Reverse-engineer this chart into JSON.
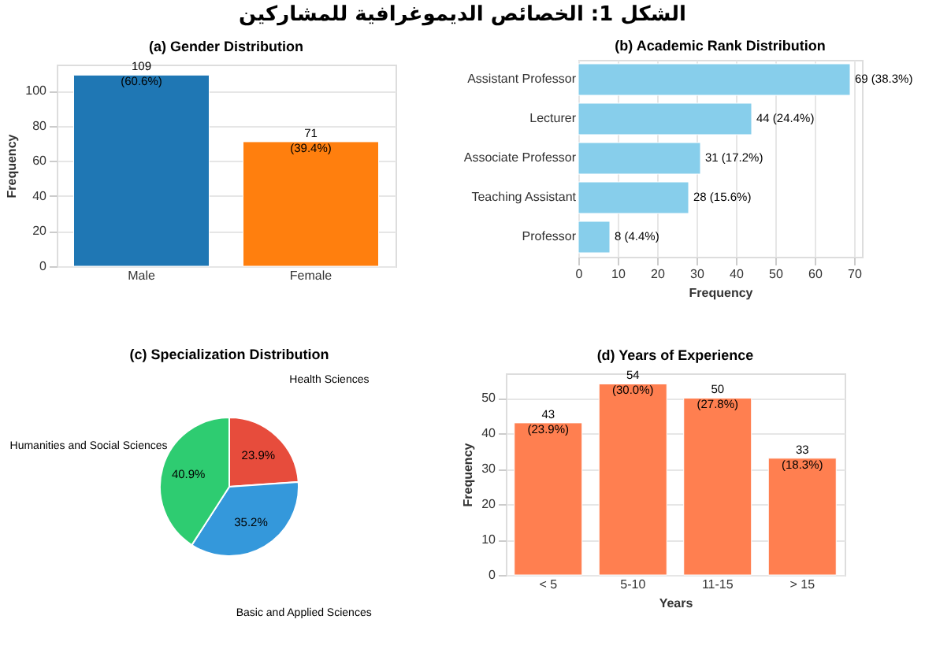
{
  "chart_data": [
    {
      "type": "other",
      "title": "الشكل 1: الخصائص الديموغرافية للمشاركين"
    },
    {
      "type": "bar",
      "title": "(a) Gender Distribution",
      "categories": [
        "Male",
        "Female"
      ],
      "values": [
        109,
        71
      ],
      "colors": [
        "#1f77b4",
        "#ff7f0e"
      ],
      "ylabel": "Frequency",
      "ylim": [
        0,
        115
      ],
      "yticks": [
        0,
        20,
        40,
        60,
        80,
        100
      ],
      "grid": "y",
      "value_labels": [
        "109\n(60.6%)",
        "71\n(39.4%)"
      ]
    },
    {
      "type": "bar",
      "orientation": "horizontal",
      "title": "(b) Academic Rank Distribution",
      "categories": [
        "Assistant Professor",
        "Lecturer",
        "Associate Professor",
        "Teaching Assistant",
        "Professor"
      ],
      "values": [
        69,
        44,
        31,
        28,
        8
      ],
      "color": "#87ceeb",
      "xlabel": "Frequency",
      "xlim": [
        0,
        72
      ],
      "xticks": [
        0,
        10,
        20,
        30,
        40,
        50,
        60,
        70
      ],
      "grid": "x",
      "value_labels": [
        "69 (38.3%)",
        "44 (24.4%)",
        "31 (17.2%)",
        "28 (15.6%)",
        "8 (4.4%)"
      ]
    },
    {
      "type": "pie",
      "title": "(c) Specialization Distribution",
      "categories": [
        "Health Sciences",
        "Basic and Applied Sciences",
        "Humanities and Social Sciences"
      ],
      "values": [
        23.9,
        35.2,
        40.9
      ],
      "colors": [
        "#e74c3c",
        "#3498db",
        "#2ecc71"
      ],
      "value_labels": [
        "23.9%",
        "35.2%",
        "40.9%"
      ]
    },
    {
      "type": "bar",
      "title": "(d) Years of Experience",
      "categories": [
        "< 5",
        "5-10",
        "11-15",
        "> 15"
      ],
      "values": [
        43,
        54,
        50,
        33
      ],
      "color": "#ff7f50",
      "xlabel": "Years",
      "ylabel": "Frequency",
      "ylim": [
        0,
        57
      ],
      "yticks": [
        0,
        10,
        20,
        30,
        40,
        50
      ],
      "grid": "y",
      "value_labels": [
        "43\n(23.9%)",
        "54\n(30.0%)",
        "50\n(27.8%)",
        "33\n(18.3%)"
      ]
    }
  ]
}
